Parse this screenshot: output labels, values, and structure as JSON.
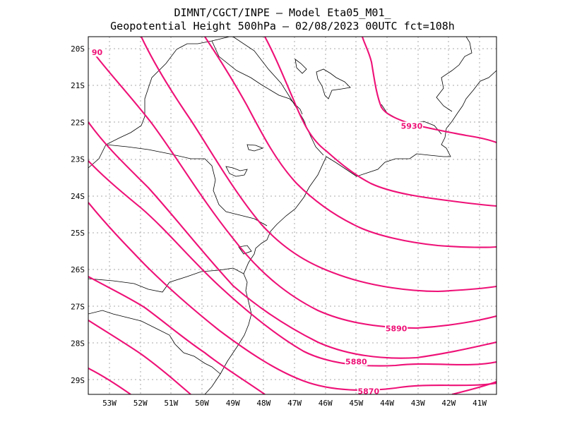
{
  "title": {
    "line1": "DIMNT/CGCT/INPE –  Model Eta05_M01_",
    "line2": "Geopotential Height 500hPa –  02/08/2023 00UTC fct=108h"
  },
  "axes": {
    "lat_ticks": [
      "20S",
      "21S",
      "22S",
      "23S",
      "24S",
      "25S",
      "26S",
      "27S",
      "28S",
      "29S"
    ],
    "lon_ticks": [
      "53W",
      "52W",
      "51W",
      "50W",
      "49W",
      "48W",
      "47W",
      "46W",
      "45W",
      "44W",
      "43W",
      "42W",
      "41W"
    ]
  },
  "colors": {
    "contour": "#ee1177",
    "coast": "#000000",
    "grid": "#aaaaaa"
  },
  "contour_labels": [
    {
      "text": "5930",
      "lon": -43.2,
      "lat": -22.1
    },
    {
      "text": "5890",
      "lon": -43.7,
      "lat": -27.6
    },
    {
      "text": "5880",
      "lon": -45.0,
      "lat": -28.5
    },
    {
      "text": "5870",
      "lon": -44.6,
      "lat": -29.3
    },
    {
      "text": "90",
      "lon": -53.4,
      "lat": -20.1
    }
  ]
}
